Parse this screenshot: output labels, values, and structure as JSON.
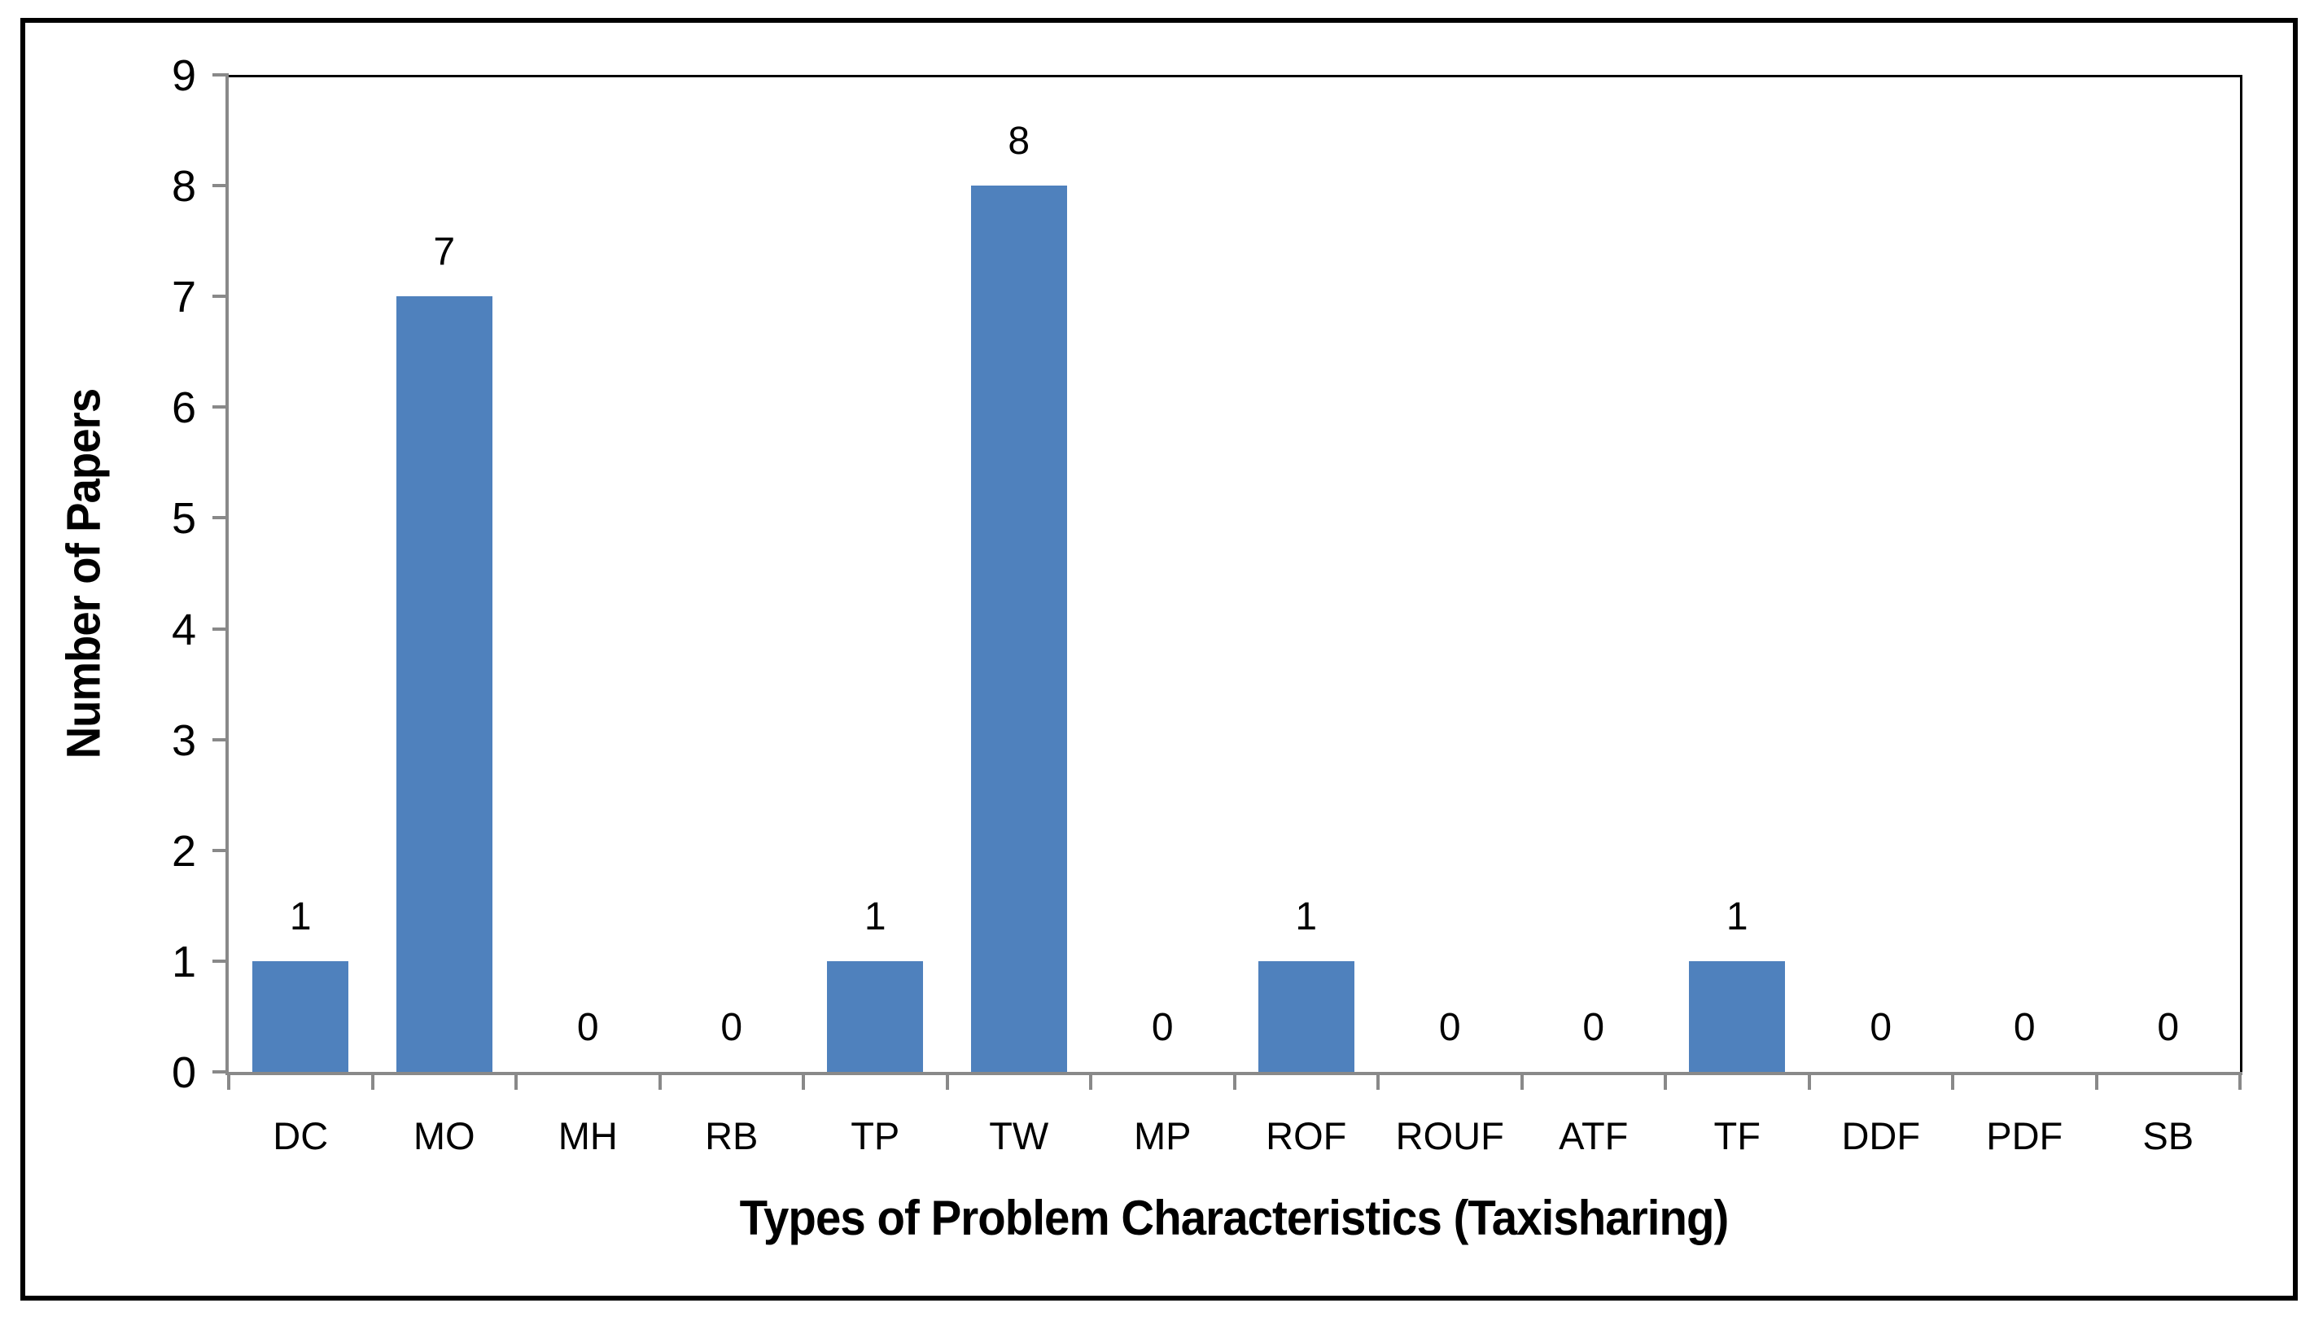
{
  "chart_data": {
    "type": "bar",
    "categories": [
      "DC",
      "MO",
      "MH",
      "RB",
      "TP",
      "TW",
      "MP",
      "ROF",
      "ROUF",
      "ATF",
      "TF",
      "DDF",
      "PDF",
      "SB"
    ],
    "values": [
      1,
      7,
      0,
      0,
      1,
      8,
      0,
      1,
      0,
      0,
      1,
      0,
      0,
      0
    ],
    "title": "",
    "xlabel": "Types of Problem Characteristics (Taxisharing)",
    "ylabel": "Number of Papers",
    "ylim": [
      0,
      9
    ],
    "yticks": [
      0,
      1,
      2,
      3,
      4,
      5,
      6,
      7,
      8,
      9
    ],
    "data_labels_shown": true,
    "grid": false,
    "legend": false,
    "bar_color": "#4F81BD",
    "axis_color": "#898989",
    "plot_border_color": "#000000",
    "frame_color": "#000000",
    "text_color": "#000000"
  }
}
